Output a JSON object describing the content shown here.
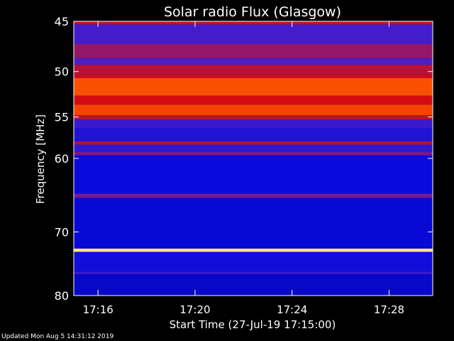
{
  "chart_data": {
    "type": "heatmap",
    "title": "Solar radio Flux (Glasgow)",
    "xlabel": "Start Time (27-Jul-19 17:15:00)",
    "ylabel": "Frequency [MHz]",
    "x_ticks": [
      "17:16",
      "17:20",
      "17:24",
      "17:28"
    ],
    "x_tick_minutes": [
      1,
      5,
      9,
      13
    ],
    "xlim_minutes_after_start": [
      0,
      14.8
    ],
    "y_ticks": [
      45,
      50,
      55,
      60,
      70,
      80
    ],
    "ylim_mhz": [
      45,
      80
    ],
    "y_scale": "log",
    "colormap": "blue-red-yellow-white",
    "bands": [
      {
        "from_mhz": 45.0,
        "to_mhz": 45.3,
        "level": 0.55
      },
      {
        "from_mhz": 45.3,
        "to_mhz": 47.2,
        "level": 0.32
      },
      {
        "from_mhz": 47.2,
        "to_mhz": 48.6,
        "level": 0.42
      },
      {
        "from_mhz": 48.6,
        "to_mhz": 49.3,
        "level": 0.34
      },
      {
        "from_mhz": 49.3,
        "to_mhz": 50.3,
        "level": 0.48
      },
      {
        "from_mhz": 50.3,
        "to_mhz": 50.7,
        "level": 0.55
      },
      {
        "from_mhz": 50.7,
        "to_mhz": 52.6,
        "level": 0.72
      },
      {
        "from_mhz": 52.6,
        "to_mhz": 53.6,
        "level": 0.58
      },
      {
        "from_mhz": 53.6,
        "to_mhz": 54.8,
        "level": 0.7
      },
      {
        "from_mhz": 54.8,
        "to_mhz": 55.3,
        "level": 0.5
      },
      {
        "from_mhz": 55.3,
        "to_mhz": 56.3,
        "level": 0.3
      },
      {
        "from_mhz": 56.3,
        "to_mhz": 57.9,
        "level": 0.24
      },
      {
        "from_mhz": 57.9,
        "to_mhz": 58.3,
        "level": 0.46
      },
      {
        "from_mhz": 58.3,
        "to_mhz": 59.2,
        "level": 0.28
      },
      {
        "from_mhz": 59.2,
        "to_mhz": 59.6,
        "level": 0.4
      },
      {
        "from_mhz": 59.6,
        "to_mhz": 64.6,
        "level": 0.18
      },
      {
        "from_mhz": 64.6,
        "to_mhz": 65.2,
        "level": 0.38
      },
      {
        "from_mhz": 65.2,
        "to_mhz": 72.5,
        "level": 0.17
      },
      {
        "from_mhz": 72.5,
        "to_mhz": 73.0,
        "level": 0.92
      },
      {
        "from_mhz": 73.0,
        "to_mhz": 76.1,
        "level": 0.2
      },
      {
        "from_mhz": 76.1,
        "to_mhz": 76.5,
        "level": 0.3
      },
      {
        "from_mhz": 76.5,
        "to_mhz": 80.0,
        "level": 0.15
      }
    ],
    "grid": false,
    "legend": "none"
  },
  "footer": {
    "updated": "Updated Mon Aug  5 14:31:12 2019"
  }
}
